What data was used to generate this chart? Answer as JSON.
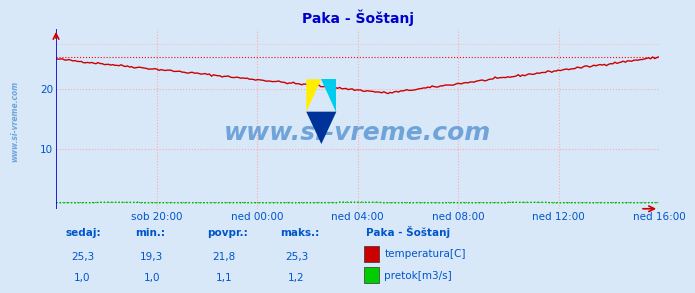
{
  "title": "Paka - Šoštanj",
  "bg_color": "#d8e8f8",
  "plot_bg_color": "#d8e8f8",
  "grid_color": "#ffaaaa",
  "grid_style": "dotted",
  "ylim": [
    0,
    30
  ],
  "yticks": [
    10,
    20
  ],
  "xlabel_color": "#0055cc",
  "title_color": "#0000cc",
  "watermark": "www.si-vreme.com",
  "watermark_color": "#4488cc",
  "temp_color": "#cc0000",
  "flow_color": "#00aa00",
  "temp_max_line_color": "#ff0000",
  "flow_max_line_color": "#00cc00",
  "temp_max": 25.3,
  "temp_min": 19.3,
  "temp_avg": 21.8,
  "temp_now": 25.3,
  "flow_max": 1.2,
  "flow_min": 1.0,
  "flow_avg": 1.1,
  "flow_now": 1.0,
  "xtick_labels": [
    "sob 20:00",
    "ned 00:00",
    "ned 04:00",
    "ned 08:00",
    "ned 12:00",
    "ned 16:00"
  ],
  "n_points": 288,
  "legend_title": "Paka - Šoštanj",
  "legend_labels": [
    "temperatura[C]",
    "pretok[m3/s]"
  ],
  "legend_colors": [
    "#cc0000",
    "#00cc00"
  ],
  "table_headers": [
    "sedaj:",
    "min.:",
    "povpr.:",
    "maks.:"
  ],
  "table_temp": [
    "25,3",
    "19,3",
    "21,8",
    "25,3"
  ],
  "table_flow": [
    "1,0",
    "1,0",
    "1,1",
    "1,2"
  ],
  "spine_color": "#0000cc",
  "axis_arrow_color": "#cc0000"
}
